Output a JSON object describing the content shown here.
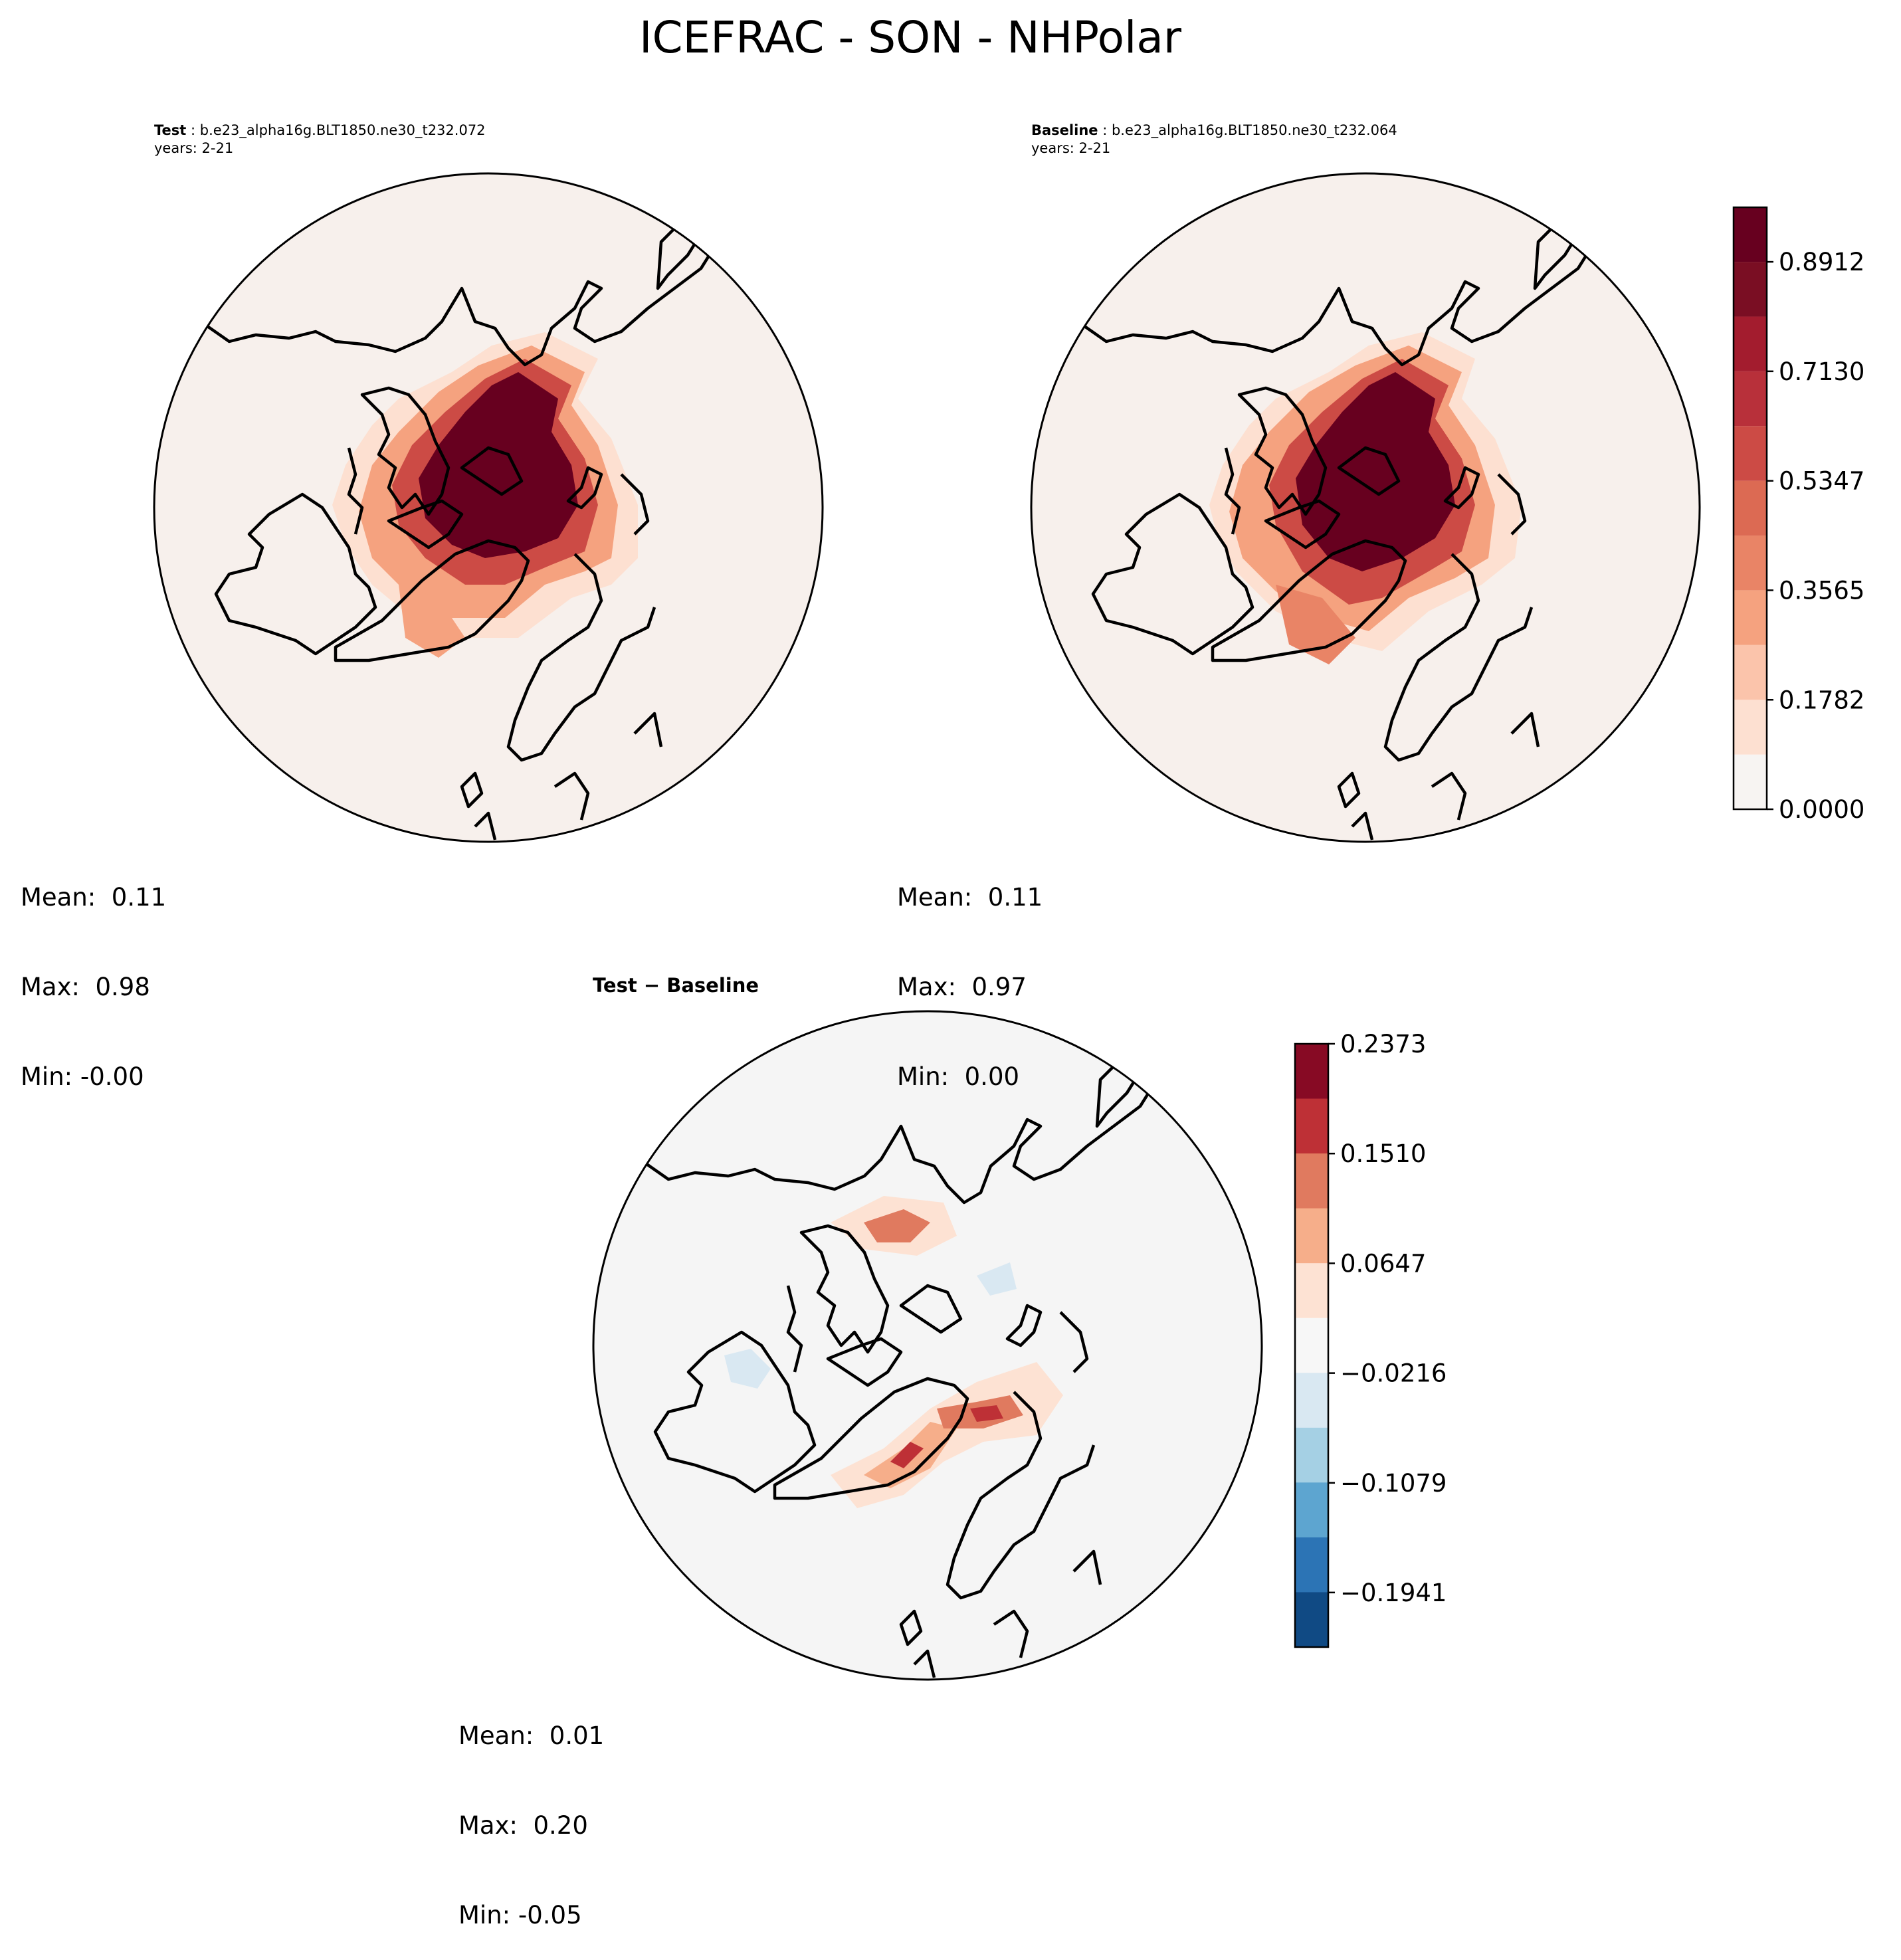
{
  "title": "ICEFRAC - SON - NHPolar",
  "chart_data": [
    {
      "type": "heatmap",
      "panel": "test",
      "projection": "north-polar-stereographic",
      "header_label": "Test",
      "header_case": "b.e23_alpha16g.BLT1850.ne30_t232.072",
      "header_years": "years: 2-21",
      "stats": {
        "mean": "Mean:  0.11",
        "max": "Max:  0.98",
        "min": "Min: -0.00"
      },
      "colormap": "Reds",
      "colorbar_shared_with": "baseline"
    },
    {
      "type": "heatmap",
      "panel": "baseline",
      "projection": "north-polar-stereographic",
      "header_label": "Baseline",
      "header_case": "b.e23_alpha16g.BLT1850.ne30_t232.064",
      "header_years": "years: 2-21",
      "stats": {
        "mean": "Mean:  0.11",
        "max": "Max:  0.97",
        "min": "Min:  0.00"
      },
      "colormap": "Reds",
      "colorbar": {
        "levels": [
          0.0,
          0.0891,
          0.1782,
          0.2674,
          0.3565,
          0.4456,
          0.5347,
          0.6239,
          0.713,
          0.8021,
          0.8912,
          0.98
        ],
        "tick_values": [
          0.0,
          0.1782,
          0.3565,
          0.5347,
          0.713,
          0.8912
        ],
        "tick_labels": [
          "0.0000",
          "0.1782",
          "0.3565",
          "0.5347",
          "0.7130",
          "0.8912"
        ],
        "colors": [
          "#f7f4f2",
          "#fde0d1",
          "#fbc4ab",
          "#f5a27f",
          "#e98466",
          "#dc6a53",
          "#cc4b45",
          "#b8303a",
          "#a31c2e",
          "#7a0e23",
          "#67001f"
        ]
      }
    },
    {
      "type": "heatmap",
      "panel": "difference",
      "projection": "north-polar-stereographic",
      "header_label": "Test − Baseline",
      "stats": {
        "mean": "Mean:  0.01",
        "max": "Max:  0.20",
        "min": "Min: -0.05"
      },
      "colormap": "RdBu_r",
      "colorbar": {
        "tick_values": [
          0.2373,
          0.151,
          0.0647,
          -0.0216,
          -0.1079,
          -0.1941
        ],
        "tick_labels": [
          "0.2373",
          "0.1510",
          "0.0647",
          "−0.0216",
          "−0.1079",
          "−0.1941"
        ],
        "colors_top_to_bottom": [
          "#870a24",
          "#be3036",
          "#e07a5f",
          "#f6ae8a",
          "#fde2d3",
          "#f7f7f7",
          "#d9e8f2",
          "#a5d0e4",
          "#5da5d0",
          "#2c74b5",
          "#104a84"
        ]
      }
    }
  ]
}
